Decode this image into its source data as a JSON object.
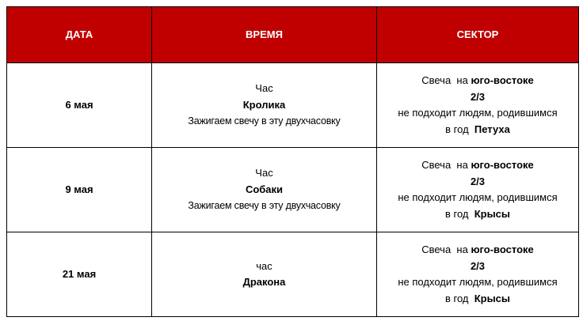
{
  "header": {
    "date": "ДАТА",
    "time": "ВРЕМЯ",
    "sector": "СЕКТОР"
  },
  "header_color": "#c00000",
  "rows": [
    {
      "date": "6 мая",
      "hour_prefix": "Час",
      "hour_animal": "Кролика",
      "hour_note": "Зажигаем свечу в эту двухчасовку",
      "sector_prefix": "Свеча  на ",
      "sector_direction": "юго-востоке",
      "sector_fraction": "2/3",
      "sector_warning": "не подходит людям, родившимся",
      "year_prefix": "в год  ",
      "year_animal": "Петуха"
    },
    {
      "date": "9 мая",
      "hour_prefix": "Час",
      "hour_animal": "Собаки",
      "hour_note": "Зажигаем свечу в эту двухчасовку",
      "sector_prefix": "Свеча  на ",
      "sector_direction": "юго-востоке",
      "sector_fraction": "2/3",
      "sector_warning": "не подходит людям, родившимся",
      "year_prefix": "в год  ",
      "year_animal": "Крысы"
    },
    {
      "date": "21 мая",
      "hour_prefix": "час",
      "hour_animal": "Дракона",
      "sector_prefix": "Свеча  на ",
      "sector_direction": "юго-востоке",
      "sector_fraction": "2/3",
      "sector_warning": "не подходит людям, родившимся",
      "year_prefix": "в год  ",
      "year_animal": "Крысы"
    }
  ]
}
